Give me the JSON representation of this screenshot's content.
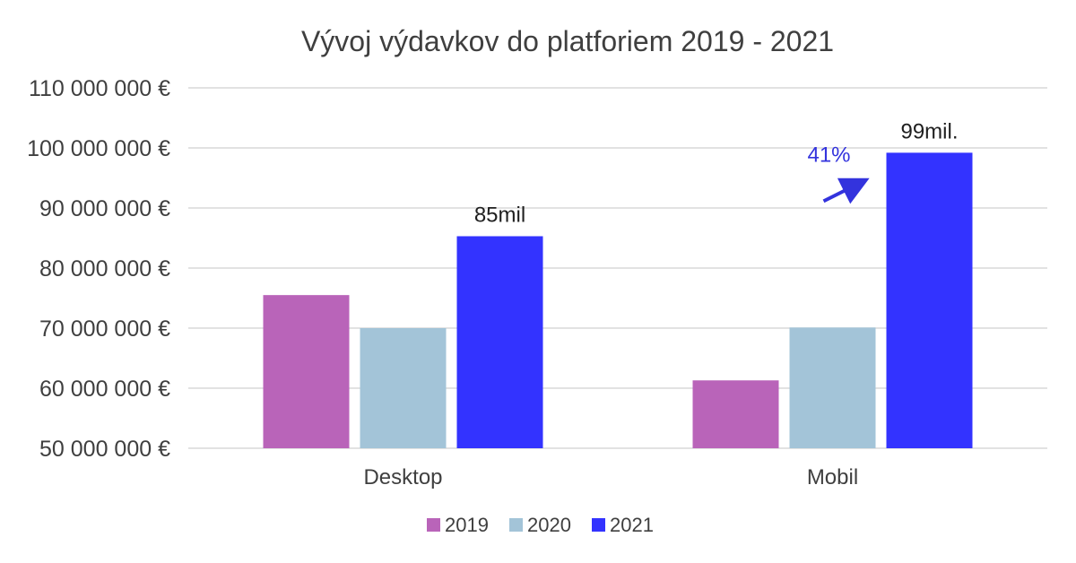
{
  "chart_data": {
    "type": "bar",
    "title": "Vývoj výdavkov do platforiem 2019 - 2021",
    "xlabel": "",
    "ylabel": "",
    "categories": [
      "Desktop",
      "Mobil"
    ],
    "series": [
      {
        "name": "2019",
        "color": "#b964b9",
        "values": [
          75500000,
          61300000
        ]
      },
      {
        "name": "2020",
        "color": "#a3c4d8",
        "values": [
          70000000,
          70100000
        ]
      },
      {
        "name": "2021",
        "color": "#3333ff",
        "values": [
          85300000,
          99200000
        ]
      }
    ],
    "ylim": [
      50000000,
      110000000
    ],
    "yticks": [
      50000000,
      60000000,
      70000000,
      80000000,
      90000000,
      100000000,
      110000000
    ],
    "ytick_labels": [
      "50 000 000 €",
      "60 000 000 €",
      "70 000 000 €",
      "80 000 000 €",
      "90 000 000 €",
      "100 000 000 €",
      "110 000 000 €"
    ],
    "grid": true,
    "legend_position": "bottom",
    "data_labels": [
      {
        "category": "Desktop",
        "series": "2021",
        "text": "85mil"
      },
      {
        "category": "Mobil",
        "series": "2021",
        "text": "99mil."
      }
    ],
    "annotations": [
      {
        "text": "41%",
        "category": "Mobil",
        "series": "2021",
        "color": "#3333dd"
      }
    ]
  }
}
